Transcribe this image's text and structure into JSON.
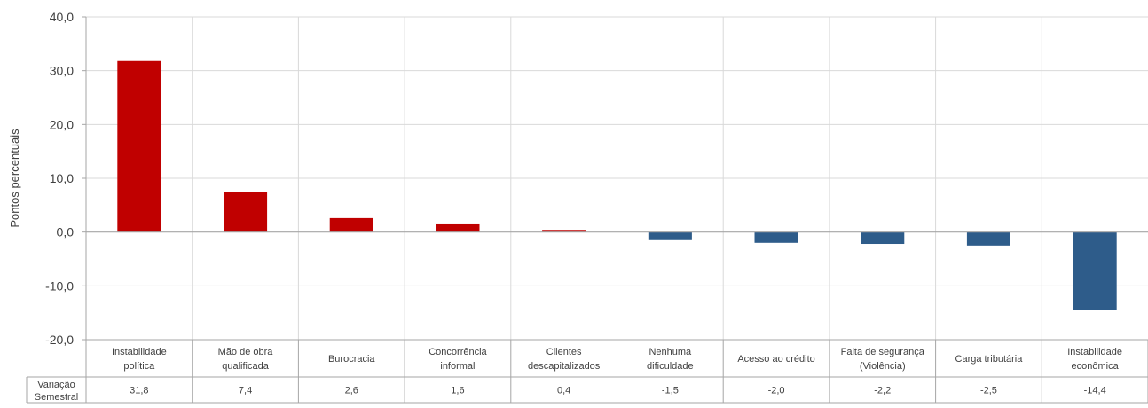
{
  "chart_data": {
    "type": "bar",
    "ylabel": "Pontos percentuais",
    "ylim": [
      -20,
      40
    ],
    "yticks": [
      40,
      30,
      20,
      10,
      0,
      -10,
      -20
    ],
    "ytick_labels": [
      "40,0",
      "30,0",
      "20,0",
      "10,0",
      "0,0",
      "-10,0",
      "-20,0"
    ],
    "grid": true,
    "categories": [
      [
        "Instabilidade",
        "política"
      ],
      [
        "Mão de obra",
        "qualificada"
      ],
      [
        "Burocracia"
      ],
      [
        "Concorrência",
        "informal"
      ],
      [
        "Clientes",
        "descapitalizados"
      ],
      [
        "Nenhuma",
        "dificuldade"
      ],
      [
        "Acesso ao crédito"
      ],
      [
        "Falta de segurança",
        "(Violência)"
      ],
      [
        "Carga tributária"
      ],
      [
        "Instabilidade",
        "econômica"
      ]
    ],
    "series": [
      {
        "name": "Variação Semestral",
        "values": [
          31.8,
          7.4,
          2.6,
          1.6,
          0.4,
          -1.5,
          -2.0,
          -2.2,
          -2.5,
          -14.4
        ],
        "labels": [
          "31,8",
          "7,4",
          "2,6",
          "1,6",
          "0,4",
          "-1,5",
          "-2,0",
          "-2,2",
          "-2,5",
          "-14,4"
        ]
      }
    ],
    "table_row_label": [
      "Variação",
      "Semestral"
    ],
    "colors": {
      "positive": "#c00000",
      "negative": "#2e5c8a",
      "grid": "#d9d9d9",
      "border": "#a6a6a6"
    }
  }
}
